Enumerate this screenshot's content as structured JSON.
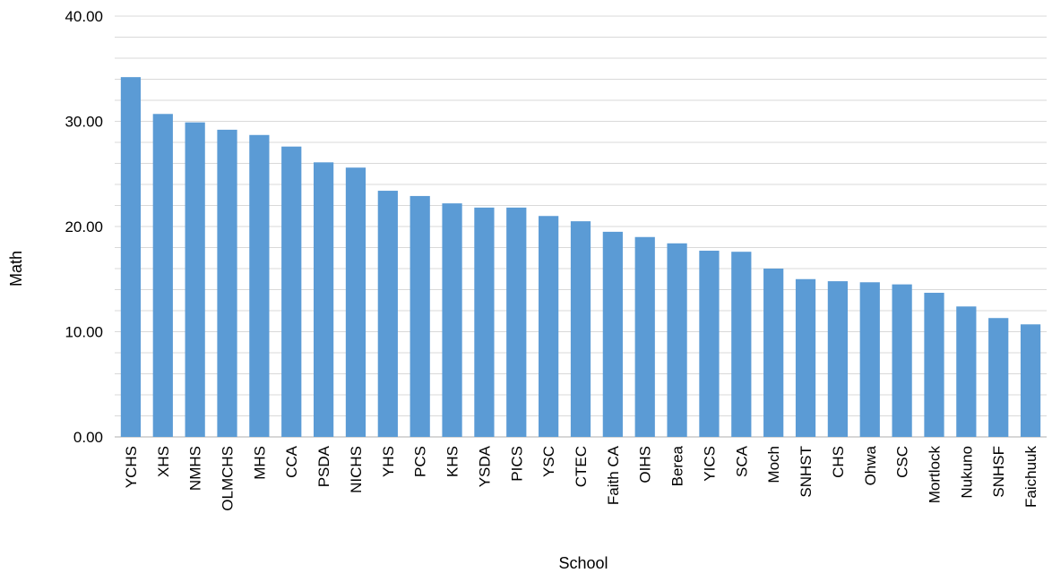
{
  "chart_data": {
    "type": "bar",
    "title": "",
    "xlabel": "School",
    "ylabel": "Math",
    "ylim": [
      0,
      40
    ],
    "y_major_ticks": [
      0,
      10,
      20,
      30,
      40
    ],
    "y_tick_labels": [
      "0.00",
      "10.00",
      "20.00",
      "30.00",
      "40.00"
    ],
    "y_minor_step": 2,
    "grid": true,
    "legend": "none",
    "bar_color": "#5b9bd5",
    "gridline_color": "#d9d9d9",
    "categories": [
      "YCHS",
      "XHS",
      "NMHS",
      "OLMCHS",
      "MHS",
      "CCA",
      "PSDA",
      "NICHS",
      "YHS",
      "PCS",
      "KHS",
      "YSDA",
      "PICS",
      "YSC",
      "CTEC",
      "Faith CA",
      "OIHS",
      "Berea",
      "YICS",
      "SCA",
      "Moch",
      "SNHST",
      "CHS",
      "Ohwa",
      "CSC",
      "Mortlock",
      "Nukuno",
      "SNHSF",
      "Faichuuk"
    ],
    "values": [
      34.2,
      30.7,
      29.9,
      29.2,
      28.7,
      27.6,
      26.1,
      25.6,
      23.4,
      22.9,
      22.2,
      21.8,
      21.8,
      21.0,
      20.5,
      19.5,
      19.0,
      18.4,
      17.7,
      17.6,
      16.0,
      15.0,
      14.8,
      14.7,
      14.5,
      13.7,
      12.4,
      11.3,
      10.7
    ]
  }
}
